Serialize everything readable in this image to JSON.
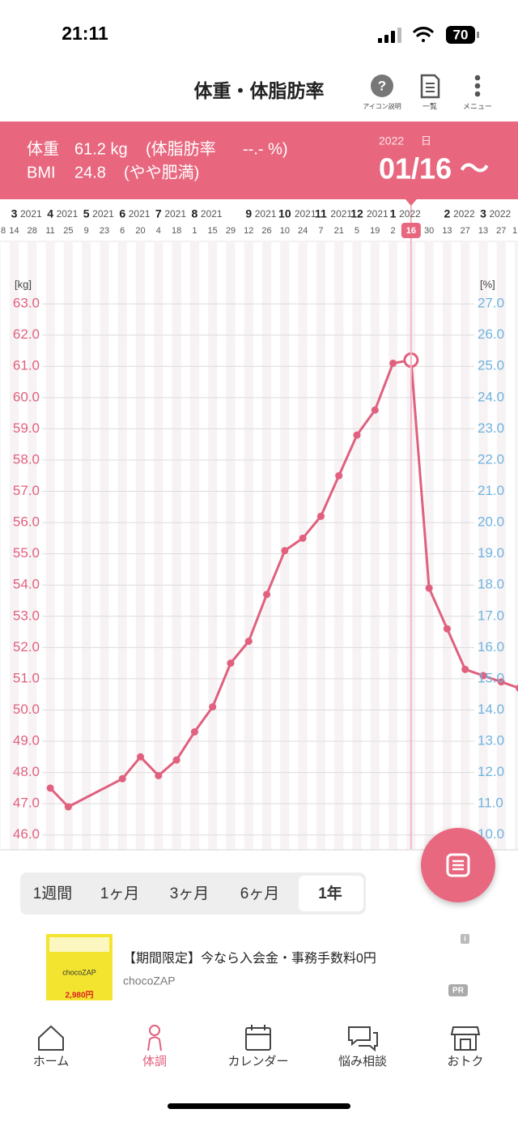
{
  "status_bar": {
    "time": "21:11",
    "battery": "70"
  },
  "header": {
    "title": "体重・体脂肪率",
    "icons": [
      "アイコン説明",
      "一覧",
      "メニュー"
    ]
  },
  "summary": {
    "weight_label": "体重",
    "weight": "61.2 kg",
    "fat_label": "(体脂肪率",
    "fat": "--.- %)",
    "bmi_label": "BMI",
    "bmi": "24.8",
    "bmi_status": "(やや肥満)",
    "year": "2022",
    "day_unit": "日",
    "date": "01/16 〜"
  },
  "chart_data": {
    "type": "line",
    "y_label": "[kg]",
    "y2_label": "[%]",
    "color": "#e0607e",
    "x": [
      "2021-04-11",
      "2021-04-25",
      "2021-06-06",
      "2021-06-20",
      "2021-07-04",
      "2021-07-18",
      "2021-08-01",
      "2021-08-15",
      "2021-08-29",
      "2021-09-12",
      "2021-09-26",
      "2021-10-10",
      "2021-10-24",
      "2021-11-07",
      "2021-11-21",
      "2021-12-05",
      "2021-12-19",
      "2022-01-02",
      "2022-01-16",
      "2022-01-30",
      "2022-02-13",
      "2022-02-27",
      "2022-03-13",
      "2022-03-27",
      "2022-04-10"
    ],
    "values": [
      47.5,
      46.9,
      47.8,
      48.5,
      47.9,
      48.4,
      49.3,
      50.1,
      51.5,
      52.2,
      53.7,
      55.1,
      55.5,
      56.2,
      57.5,
      58.8,
      59.6,
      61.1,
      61.2,
      53.9,
      52.6,
      51.3,
      51.1,
      50.9,
      50.7
    ],
    "highlight_x": "2022-01-16",
    "xlim": [
      "2021-03-03",
      "2022-04-09"
    ],
    "xticks": [
      {
        "value": "2021-02-28",
        "label": "8"
      },
      {
        "value": "2021-03-14",
        "label": "14"
      },
      {
        "value": "2021-03-28",
        "label": "28"
      },
      {
        "value": "2021-04-11",
        "label": "11"
      },
      {
        "value": "2021-04-25",
        "label": "25"
      },
      {
        "value": "2021-05-09",
        "label": "9"
      },
      {
        "value": "2021-05-23",
        "label": "23"
      },
      {
        "value": "2021-06-06",
        "label": "6"
      },
      {
        "value": "2021-06-20",
        "label": "20"
      },
      {
        "value": "2021-07-04",
        "label": "4"
      },
      {
        "value": "2021-07-18",
        "label": "18"
      },
      {
        "value": "2021-08-01",
        "label": "1"
      },
      {
        "value": "2021-08-15",
        "label": "15"
      },
      {
        "value": "2021-08-29",
        "label": "29"
      },
      {
        "value": "2021-09-12",
        "label": "12"
      },
      {
        "value": "2021-09-26",
        "label": "26"
      },
      {
        "value": "2021-10-10",
        "label": "10"
      },
      {
        "value": "2021-10-24",
        "label": "24"
      },
      {
        "value": "2021-11-07",
        "label": "7"
      },
      {
        "value": "2021-11-21",
        "label": "21"
      },
      {
        "value": "2021-12-05",
        "label": "5"
      },
      {
        "value": "2021-12-19",
        "label": "19"
      },
      {
        "value": "2022-01-02",
        "label": "2"
      },
      {
        "value": "2022-01-16",
        "label": "16"
      },
      {
        "value": "2022-01-30",
        "label": "30"
      },
      {
        "value": "2022-02-13",
        "label": "13"
      },
      {
        "value": "2022-02-27",
        "label": "27"
      },
      {
        "value": "2022-03-13",
        "label": "13"
      },
      {
        "value": "2022-03-27",
        "label": "27"
      },
      {
        "value": "2022-04-10",
        "label": "1"
      }
    ],
    "months": [
      {
        "value": "2021-03-14",
        "label": "3",
        "year": "2021"
      },
      {
        "value": "2021-04-11",
        "label": "4",
        "year": "2021"
      },
      {
        "value": "2021-05-09",
        "label": "5",
        "year": "2021"
      },
      {
        "value": "2021-06-06",
        "label": "6",
        "year": "2021"
      },
      {
        "value": "2021-07-04",
        "label": "7",
        "year": "2021"
      },
      {
        "value": "2021-08-01",
        "label": "8",
        "year": "2021"
      },
      {
        "value": "2021-09-12",
        "label": "9",
        "year": "2021"
      },
      {
        "value": "2021-10-10",
        "label": "10",
        "year": "2021"
      },
      {
        "value": "2021-11-07",
        "label": "11",
        "year": "2021"
      },
      {
        "value": "2021-12-05",
        "label": "12",
        "year": "2021"
      },
      {
        "value": "2022-01-02",
        "label": "1",
        "year": "2022"
      },
      {
        "value": "2022-02-13",
        "label": "2",
        "year": "2022"
      },
      {
        "value": "2022-03-13",
        "label": "3",
        "year": "2022"
      }
    ],
    "ylim": [
      45.5,
      65
    ],
    "yticks": [
      {
        "value": 46,
        "label": "46.0"
      },
      {
        "value": 47,
        "label": "47.0"
      },
      {
        "value": 48,
        "label": "48.0"
      },
      {
        "value": 49,
        "label": "49.0"
      },
      {
        "value": 50,
        "label": "50.0"
      },
      {
        "value": 51,
        "label": "51.0"
      },
      {
        "value": 52,
        "label": "52.0"
      },
      {
        "value": 53,
        "label": "53.0"
      },
      {
        "value": 54,
        "label": "54.0"
      },
      {
        "value": 55,
        "label": "55.0"
      },
      {
        "value": 56,
        "label": "56.0"
      },
      {
        "value": 57,
        "label": "57.0"
      },
      {
        "value": 58,
        "label": "58.0"
      },
      {
        "value": 59,
        "label": "59.0"
      },
      {
        "value": 60,
        "label": "60.0"
      },
      {
        "value": 61,
        "label": "61.0"
      },
      {
        "value": 62,
        "label": "62.0"
      },
      {
        "value": 63,
        "label": "63.0"
      }
    ],
    "y2lim": [
      9.5,
      29
    ],
    "y2ticks": [
      {
        "value": 10,
        "label": "10.0"
      },
      {
        "value": 11,
        "label": "11.0"
      },
      {
        "value": 12,
        "label": "12.0"
      },
      {
        "value": 13,
        "label": "13.0"
      },
      {
        "value": 14,
        "label": "14.0"
      },
      {
        "value": 15,
        "label": "15.0"
      },
      {
        "value": 16,
        "label": "16.0"
      },
      {
        "value": 17,
        "label": "17.0"
      },
      {
        "value": 18,
        "label": "18.0"
      },
      {
        "value": 19,
        "label": "19.0"
      },
      {
        "value": 20,
        "label": "20.0"
      },
      {
        "value": 21,
        "label": "21.0"
      },
      {
        "value": 22,
        "label": "22.0"
      },
      {
        "value": 23,
        "label": "23.0"
      },
      {
        "value": 24,
        "label": "24.0"
      },
      {
        "value": 25,
        "label": "25.0"
      },
      {
        "value": 26,
        "label": "26.0"
      },
      {
        "value": 27,
        "label": "27.0"
      }
    ],
    "grid": true
  },
  "range_tabs": [
    "1週間",
    "1ヶ月",
    "3ヶ月",
    "6ヶ月",
    "1年"
  ],
  "ad": {
    "text": "【期間限定】今なら入会金・事務手数料0円",
    "advertiser": "chocoZAP",
    "badge": "PR",
    "info": "i",
    "image_brand": "chocoZAP",
    "image_price": "2,980円"
  },
  "nav": [
    "ホーム",
    "体調",
    "カレンダー",
    "悩み相談",
    "おトク"
  ]
}
